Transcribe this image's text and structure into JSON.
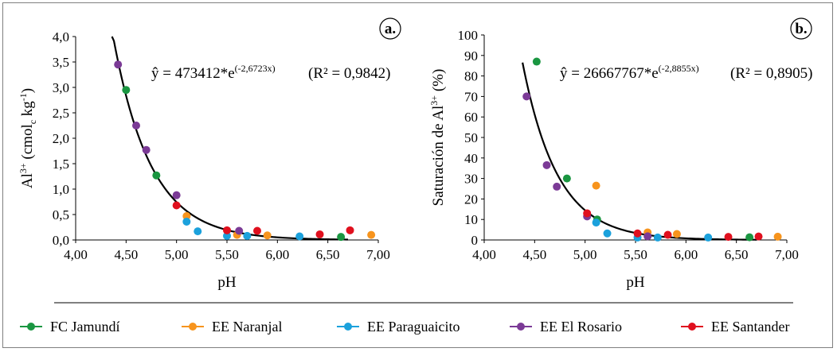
{
  "colors": {
    "FC Jamundí": "#1a9641",
    "EE Naranjal": "#f7941d",
    "EE Paraguaicito": "#1ba1dc",
    "EE El Rosario": "#7b3a96",
    "EE Santander": "#e0101e"
  },
  "legend": [
    {
      "label": "FC Jamundí",
      "color_key": "FC Jamundí"
    },
    {
      "label": "EE Naranjal",
      "color_key": "EE Naranjal"
    },
    {
      "label": "EE Paraguaicito",
      "color_key": "EE Paraguaicito"
    },
    {
      "label": "EE El Rosario",
      "color_key": "EE El Rosario"
    },
    {
      "label": "EE Santander",
      "color_key": "EE Santander"
    }
  ],
  "chart_data": [
    {
      "type": "scatter",
      "panel_label": "a.",
      "ylabel_base": "Al",
      "ylabel_sup": "3+",
      "ylabel_mid": " (cmol",
      "ylabel_sub": "c",
      "ylabel_mid2": " kg",
      "ylabel_sup2": "-1",
      "ylabel_end": ")",
      "xlabel": "pH",
      "xlim": [
        4.0,
        7.0
      ],
      "ylim": [
        0.0,
        4.0
      ],
      "xticks": [
        4.0,
        4.5,
        5.0,
        5.5,
        6.0,
        6.5,
        7.0
      ],
      "xtick_labels": [
        "4,00",
        "4,50",
        "5,00",
        "5,50",
        "6,00",
        "6,50",
        "7,00"
      ],
      "yticks": [
        0,
        0.5,
        1,
        1.5,
        2,
        2.5,
        3,
        3.5,
        4
      ],
      "ytick_labels": [
        "0,0",
        "0,5",
        "1,0",
        "1,5",
        "2,0",
        "2,5",
        "3,0",
        "3,5",
        "4,0"
      ],
      "equation_main": "ŷ = 473412*e",
      "equation_exp": "(-2,6723x)",
      "r2_text": "(R² = 0,9842)",
      "fit": {
        "a": 473412,
        "b": -2.6723,
        "x_from": 4.36,
        "x_to": 6.7
      },
      "series": [
        {
          "name": "FC Jamundí",
          "points": [
            [
              4.5,
              2.95
            ],
            [
              4.8,
              1.27
            ],
            [
              6.63,
              0.06
            ]
          ]
        },
        {
          "name": "EE Naranjal",
          "points": [
            [
              5.1,
              0.47
            ],
            [
              5.6,
              0.1
            ],
            [
              5.9,
              0.09
            ],
            [
              6.93,
              0.1
            ]
          ]
        },
        {
          "name": "EE Paraguaicito",
          "points": [
            [
              5.1,
              0.36
            ],
            [
              5.21,
              0.17
            ],
            [
              5.5,
              0.08
            ],
            [
              5.7,
              0.08
            ],
            [
              6.22,
              0.07
            ]
          ]
        },
        {
          "name": "EE El Rosario",
          "points": [
            [
              4.42,
              3.45
            ],
            [
              4.6,
              2.25
            ],
            [
              4.7,
              1.77
            ],
            [
              5.0,
              0.88
            ],
            [
              5.62,
              0.18
            ]
          ]
        },
        {
          "name": "EE Santander",
          "points": [
            [
              5.0,
              0.68
            ],
            [
              5.5,
              0.19
            ],
            [
              5.8,
              0.18
            ],
            [
              6.42,
              0.11
            ],
            [
              6.72,
              0.19
            ]
          ]
        }
      ]
    },
    {
      "type": "scatter",
      "panel_label": "b.",
      "ylabel_base": "Saturación de Al",
      "ylabel_sup": "3+",
      "ylabel_end": " (%)",
      "xlabel": "pH",
      "xlim": [
        4.0,
        7.0
      ],
      "ylim": [
        0,
        100
      ],
      "xticks": [
        4.0,
        4.5,
        5.0,
        5.5,
        6.0,
        6.5,
        7.0
      ],
      "xtick_labels": [
        "4,00",
        "4,50",
        "5,00",
        "5,50",
        "6,00",
        "6,50",
        "7,00"
      ],
      "yticks": [
        0,
        10,
        20,
        30,
        40,
        50,
        60,
        70,
        80,
        90,
        100
      ],
      "ytick_labels": [
        "0",
        "10",
        "20",
        "30",
        "40",
        "50",
        "60",
        "70",
        "80",
        "90",
        "100"
      ],
      "equation_main": "ŷ = 26667767*e",
      "equation_exp": "(-2,8855x)",
      "r2_text": "(R² = 0,8905)",
      "fit": {
        "a": 26667767,
        "b": -2.8855,
        "x_from": 4.38,
        "x_to": 6.7
      },
      "series": [
        {
          "name": "FC Jamundí",
          "points": [
            [
              4.52,
              87
            ],
            [
              4.82,
              30
            ],
            [
              5.12,
              10
            ],
            [
              6.63,
              1.3
            ]
          ]
        },
        {
          "name": "EE Naranjal",
          "points": [
            [
              5.11,
              26.5
            ],
            [
              5.62,
              3.7
            ],
            [
              5.91,
              2.9
            ],
            [
              6.91,
              1.6
            ]
          ]
        },
        {
          "name": "EE Paraguaicito",
          "points": [
            [
              5.11,
              8.5
            ],
            [
              5.22,
              3.2
            ],
            [
              5.52,
              1.2
            ],
            [
              5.72,
              1.2
            ],
            [
              6.22,
              1.2
            ]
          ]
        },
        {
          "name": "EE El Rosario",
          "points": [
            [
              4.42,
              70
            ],
            [
              4.62,
              36.5
            ],
            [
              4.72,
              26
            ],
            [
              5.02,
              11.5
            ],
            [
              5.62,
              1.8
            ]
          ]
        },
        {
          "name": "EE Santander",
          "points": [
            [
              5.02,
              13
            ],
            [
              5.52,
              3.2
            ],
            [
              5.82,
              2.5
            ],
            [
              6.42,
              1.5
            ],
            [
              6.72,
              1.7
            ]
          ]
        }
      ]
    }
  ]
}
